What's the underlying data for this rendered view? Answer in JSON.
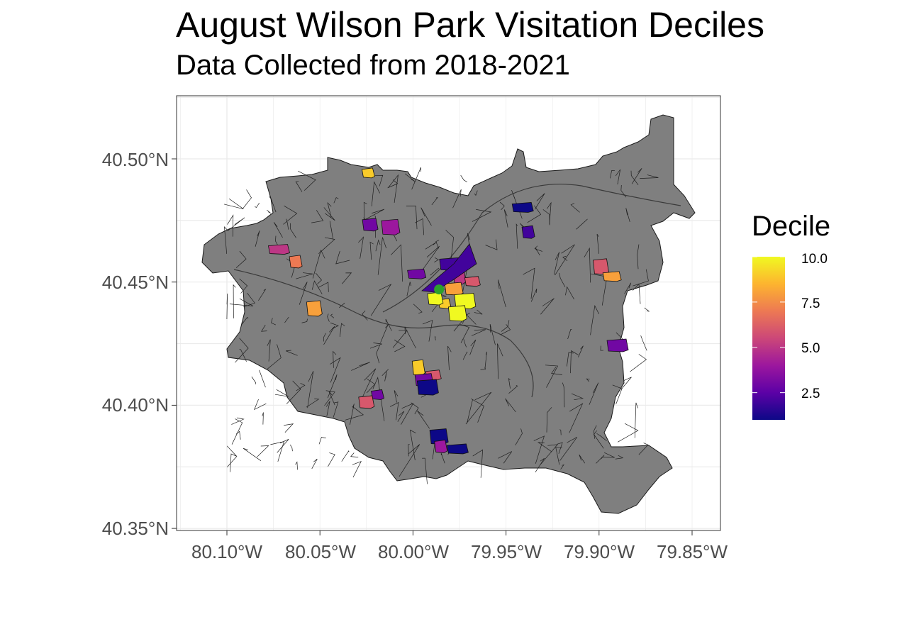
{
  "title": "August Wilson Park Visitation Deciles",
  "subtitle": "Data Collected from 2018-2021",
  "map": {
    "type": "choropleth",
    "x_ticks": [
      "80.10°W",
      "80.05°W",
      "80.00°W",
      "79.95°W",
      "79.90°W",
      "79.85°W"
    ],
    "y_ticks": [
      "40.50°N",
      "40.45°N",
      "40.40°N",
      "40.35°N"
    ],
    "lon_range": [
      -80.125,
      -79.833
    ],
    "lat_range": [
      40.345,
      40.524
    ],
    "grid": true,
    "base_fill": "#7f7f7f",
    "park_marker": {
      "lon": -79.986,
      "lat": 40.447,
      "color": "#2ca02c"
    },
    "highlighted_tracts": [
      {
        "lon": -80.024,
        "lat": 40.494,
        "decile": 9
      },
      {
        "lon": -80.023,
        "lat": 40.473,
        "decile": 3
      },
      {
        "lon": -80.012,
        "lat": 40.472,
        "decile": 4
      },
      {
        "lon": -80.072,
        "lat": 40.463,
        "decile": 5
      },
      {
        "lon": -80.063,
        "lat": 40.458,
        "decile": 7
      },
      {
        "lon": -80.053,
        "lat": 40.439,
        "decile": 8
      },
      {
        "lon": -79.998,
        "lat": 40.453,
        "decile": 3
      },
      {
        "lon": -79.98,
        "lat": 40.457,
        "decile": 2
      },
      {
        "lon": -79.975,
        "lat": 40.452,
        "decile": 5
      },
      {
        "lon": -79.968,
        "lat": 40.45,
        "decile": 6
      },
      {
        "lon": -79.978,
        "lat": 40.447,
        "decile": 8
      },
      {
        "lon": -79.972,
        "lat": 40.442,
        "decile": 10
      },
      {
        "lon": -79.983,
        "lat": 40.441,
        "decile": 9
      },
      {
        "lon": -79.988,
        "lat": 40.443,
        "decile": 10
      },
      {
        "lon": -79.976,
        "lat": 40.437,
        "decile": 10
      },
      {
        "lon": -79.941,
        "lat": 40.48,
        "decile": 1
      },
      {
        "lon": -79.938,
        "lat": 40.47,
        "decile": 2
      },
      {
        "lon": -79.899,
        "lat": 40.456,
        "decile": 6
      },
      {
        "lon": -79.893,
        "lat": 40.452,
        "decile": 8
      },
      {
        "lon": -79.89,
        "lat": 40.424,
        "decile": 3
      },
      {
        "lon": -79.997,
        "lat": 40.415,
        "decile": 9
      },
      {
        "lon": -79.989,
        "lat": 40.412,
        "decile": 6
      },
      {
        "lon": -79.994,
        "lat": 40.41,
        "decile": 3
      },
      {
        "lon": -79.992,
        "lat": 40.407,
        "decile": 1
      },
      {
        "lon": -80.019,
        "lat": 40.404,
        "decile": 3
      },
      {
        "lon": -80.025,
        "lat": 40.401,
        "decile": 6
      },
      {
        "lon": -79.986,
        "lat": 40.387,
        "decile": 1
      },
      {
        "lon": -79.976,
        "lat": 40.382,
        "decile": 1
      },
      {
        "lon": -79.985,
        "lat": 40.383,
        "decile": 4
      }
    ]
  },
  "legend": {
    "title": "Decile",
    "labels": [
      "10.0",
      "7.5",
      "5.0",
      "2.5"
    ],
    "colors": [
      "#0d0887",
      "#5c01a6",
      "#9c179e",
      "#cc4778",
      "#ed7953",
      "#fdb42f",
      "#f0f921"
    ]
  }
}
